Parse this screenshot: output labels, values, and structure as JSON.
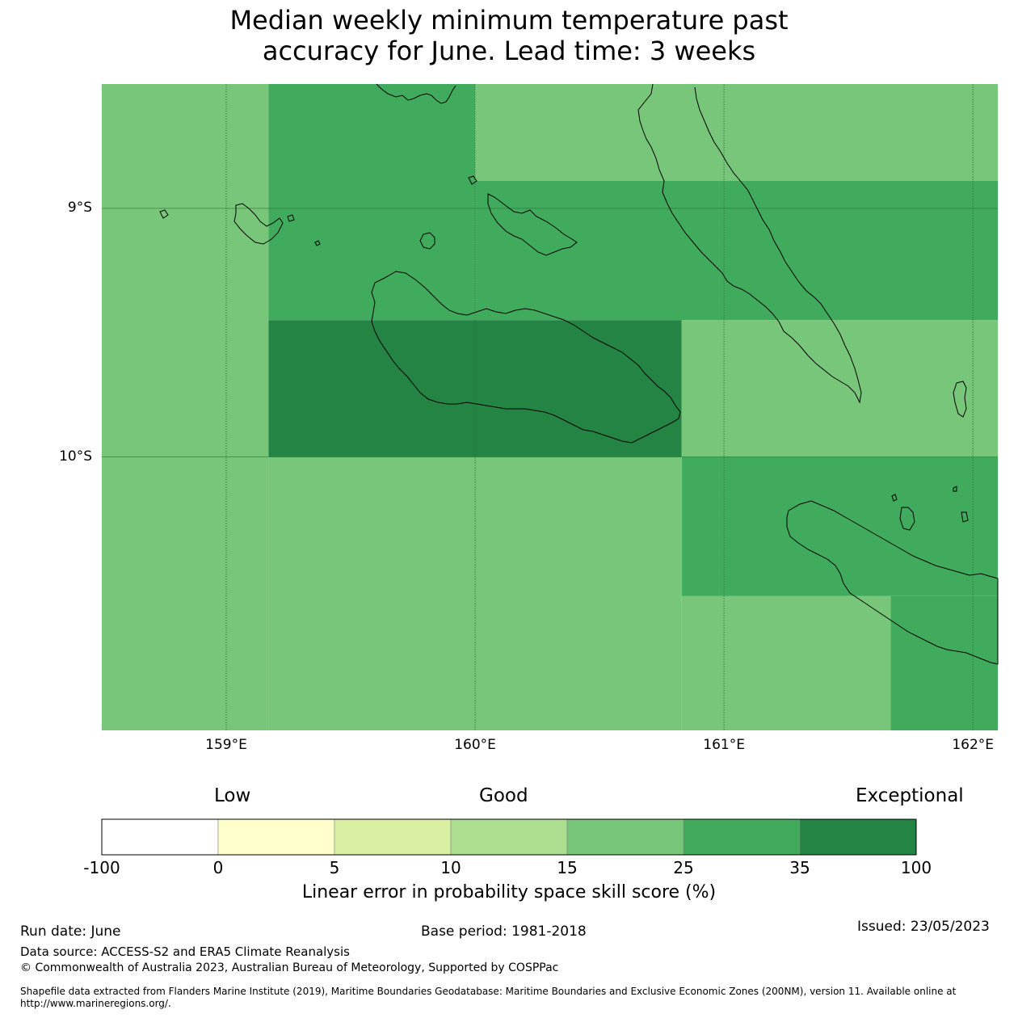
{
  "title_line1": "Median weekly minimum temperature past",
  "title_line2": "accuracy for June. Lead time: 3 weeks",
  "map": {
    "lon_range": [
      158.5,
      162.1
    ],
    "lat_range": [
      -8.5,
      -11.1
    ],
    "lon_ticks": [
      {
        "value": 159,
        "label": "159°E"
      },
      {
        "value": 160,
        "label": "160°E"
      },
      {
        "value": 161,
        "label": "161°E"
      },
      {
        "value": 162,
        "label": "162°E"
      }
    ],
    "lat_ticks": [
      {
        "value": -9,
        "label": "9°S"
      },
      {
        "value": -10,
        "label": "10°S"
      }
    ],
    "grid_cells": [
      {
        "lon0": 158.5,
        "lon1": 159.17,
        "lat0": -8.5,
        "lat1": -11.1,
        "category": 5
      },
      {
        "lon0": 159.17,
        "lon1": 160.0,
        "lat0": -8.5,
        "lat1": -9.45,
        "category": 6
      },
      {
        "lon0": 160.0,
        "lon1": 162.1,
        "lat0": -8.5,
        "lat1": -8.89,
        "category": 5
      },
      {
        "lon0": 160.0,
        "lon1": 162.1,
        "lat0": -8.89,
        "lat1": -9.45,
        "category": 6
      },
      {
        "lon0": 159.17,
        "lon1": 160.83,
        "lat0": -9.45,
        "lat1": -10.0,
        "category": 7
      },
      {
        "lon0": 160.83,
        "lon1": 162.1,
        "lat0": -9.45,
        "lat1": -10.0,
        "category": 5
      },
      {
        "lon0": 159.17,
        "lon1": 160.83,
        "lat0": -10.0,
        "lat1": -11.1,
        "category": 5
      },
      {
        "lon0": 160.83,
        "lon1": 162.1,
        "lat0": -10.0,
        "lat1": -10.56,
        "category": 6
      },
      {
        "lon0": 160.83,
        "lon1": 161.67,
        "lat0": -10.56,
        "lat1": -11.1,
        "category": 5
      },
      {
        "lon0": 161.67,
        "lon1": 162.1,
        "lat0": -10.56,
        "lat1": -11.1,
        "category": 6
      }
    ]
  },
  "colorbar": {
    "label_low": "Low",
    "label_good": "Good",
    "label_exceptional": "Exceptional",
    "title": "Linear error in probability space skill score (%)",
    "ticks": [
      "-100",
      "0",
      "5",
      "10",
      "15",
      "25",
      "35",
      "100"
    ],
    "colors": [
      "#ffffff",
      "#ffffcc",
      "#d9f0a3",
      "#addd8e",
      "#78c679",
      "#41ab5d",
      "#238443"
    ]
  },
  "footer": {
    "run_date": "Run date: June",
    "base_period": "Base period: 1981-2018",
    "issued": "Issued: 23/05/2023",
    "data_source": "Data source: ACCESS-S2 and ERA5 Climate Reanalysis",
    "copyright": "© Commonwealth of Australia 2023, Australian Bureau of Meteorology, Supported by COSPPac",
    "shapefile_line1": "Shapefile data extracted from Flanders Marine Institute (2019), Maritime Boundaries Geodatabase: Maritime Boundaries and Exclusive Economic Zones (200NM), version 11. Available online at",
    "shapefile_line2": "http://www.marineregions.org/."
  }
}
